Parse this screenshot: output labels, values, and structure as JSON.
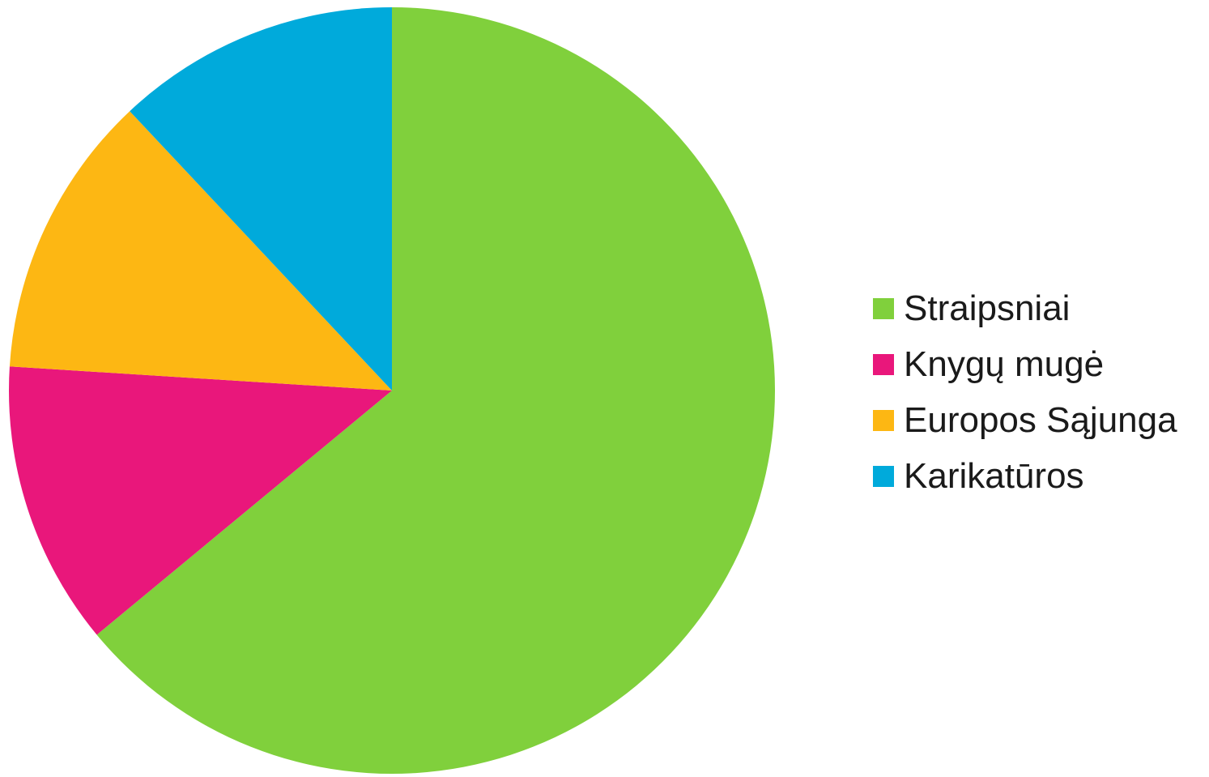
{
  "chart_data": {
    "type": "pie",
    "start_angle_deg": 0,
    "direction": "clockwise",
    "legend_position": "right",
    "slices": [
      {
        "label": "Straipsniai",
        "value": 64,
        "color": "#80D03C"
      },
      {
        "label": "Knygų mugė",
        "value": 12,
        "color": "#E9177B"
      },
      {
        "label": "Europos Sąjunga",
        "value": 12,
        "color": "#FDB713"
      },
      {
        "label": "Karikatūros",
        "value": 12,
        "color": "#00AADB"
      }
    ]
  }
}
